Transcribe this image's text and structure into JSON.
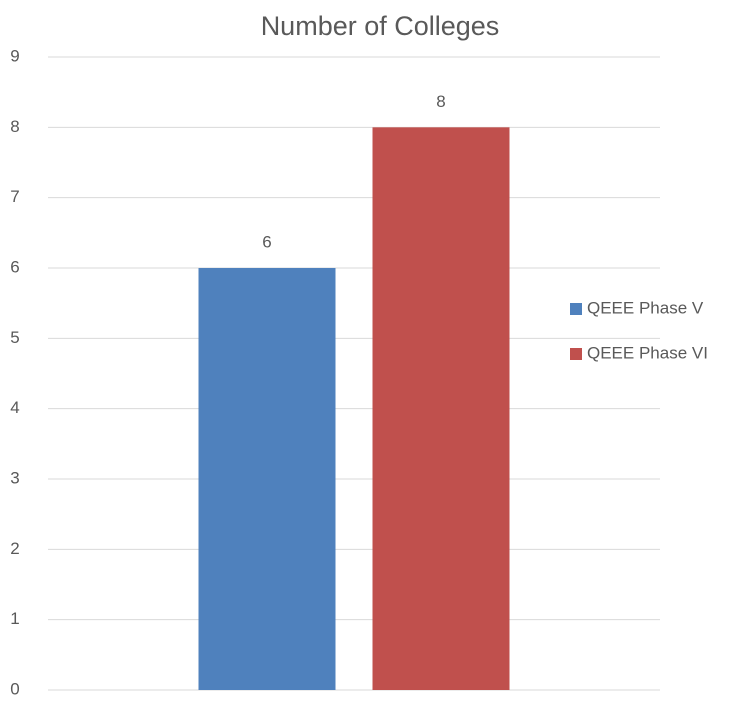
{
  "chart_data": {
    "type": "bar",
    "title": "Number of Colleges",
    "categories": [
      null
    ],
    "series": [
      {
        "name": "QEEE Phase V",
        "color": "#4f81bd",
        "values": [
          6
        ]
      },
      {
        "name": "QEEE Phase VI",
        "color": "#c0504d",
        "values": [
          8
        ]
      }
    ],
    "ylim": [
      0,
      9
    ],
    "yticks": [
      0,
      1,
      2,
      3,
      4,
      5,
      6,
      7,
      8,
      9
    ],
    "grid": true,
    "legend": "right"
  }
}
